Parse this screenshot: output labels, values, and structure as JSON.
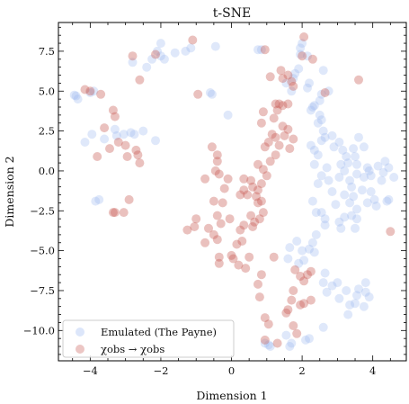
{
  "chart_data": {
    "type": "scatter",
    "title": "t-SNE",
    "xlabel": "Dimension 1",
    "ylabel": "Dimension 2",
    "xlim": [
      -4.9,
      4.95
    ],
    "ylim": [
      -11.9,
      9.3
    ],
    "xticks": [
      -4,
      -2,
      0,
      2,
      4
    ],
    "yticks": [
      -10.0,
      -7.5,
      -5.0,
      -2.5,
      0.0,
      2.5,
      5.0,
      7.5
    ],
    "ytick_labels": [
      "−10.0",
      "−7.5",
      "−5.0",
      "−2.5",
      "0.0",
      "2.5",
      "5.0",
      "7.5"
    ],
    "xtick_labels": [
      "−4",
      "−2",
      "0",
      "2",
      "4"
    ],
    "legend_position": "lower-left",
    "series": [
      {
        "name": "Emulated (The Payne)",
        "color": "#9bb8f0",
        "points": [
          [
            -4.4,
            4.7
          ],
          [
            -4.35,
            4.5
          ],
          [
            -4.45,
            4.75
          ],
          [
            -4.0,
            4.9
          ],
          [
            -3.9,
            5.0
          ],
          [
            -4.15,
            1.8
          ],
          [
            -3.95,
            2.3
          ],
          [
            -3.6,
            2.0
          ],
          [
            -3.3,
            2.6
          ],
          [
            -3.25,
            2.2
          ],
          [
            -3.05,
            2.3
          ],
          [
            -2.85,
            2.4
          ],
          [
            -2.75,
            2.3
          ],
          [
            -2.5,
            2.5
          ],
          [
            -2.15,
            1.9
          ],
          [
            -3.85,
            -1.9
          ],
          [
            -3.75,
            -1.8
          ],
          [
            -2.4,
            6.5
          ],
          [
            -2.25,
            7.0
          ],
          [
            -2.1,
            7.5
          ],
          [
            -2.0,
            8.0
          ],
          [
            -2.0,
            7.2
          ],
          [
            -1.9,
            7.0
          ],
          [
            -1.6,
            7.4
          ],
          [
            -1.3,
            7.5
          ],
          [
            -1.15,
            7.7
          ],
          [
            -2.8,
            6.8
          ],
          [
            -0.6,
            4.9
          ],
          [
            -0.55,
            4.8
          ],
          [
            -0.1,
            3.5
          ],
          [
            -0.45,
            7.8
          ],
          [
            0.75,
            7.6
          ],
          [
            0.85,
            7.6
          ],
          [
            1.75,
            5.8
          ],
          [
            1.55,
            5.5
          ],
          [
            1.7,
            5.0
          ],
          [
            1.8,
            6.1
          ],
          [
            1.9,
            6.4
          ],
          [
            1.95,
            7.3
          ],
          [
            2.0,
            8.0
          ],
          [
            1.95,
            7.7
          ],
          [
            2.15,
            7.2
          ],
          [
            2.6,
            6.3
          ],
          [
            2.2,
            5.5
          ],
          [
            2.15,
            5.2
          ],
          [
            2.3,
            4.0
          ],
          [
            2.25,
            3.8
          ],
          [
            2.35,
            4.1
          ],
          [
            2.5,
            3.5
          ],
          [
            2.55,
            3.2
          ],
          [
            2.45,
            3.0
          ],
          [
            2.6,
            2.5
          ],
          [
            2.65,
            2.1
          ],
          [
            2.55,
            1.9
          ],
          [
            2.25,
            1.6
          ],
          [
            2.35,
            1.3
          ],
          [
            2.45,
            1.0
          ],
          [
            2.75,
            5.0
          ],
          [
            2.55,
            4.8
          ],
          [
            2.5,
            4.4
          ],
          [
            2.85,
            2.2
          ],
          [
            2.9,
            1.5
          ],
          [
            3.05,
            1.8
          ],
          [
            3.15,
            1.3
          ],
          [
            3.25,
            0.9
          ],
          [
            3.1,
            0.4
          ],
          [
            3.3,
            0.5
          ],
          [
            3.2,
            0.0
          ],
          [
            3.05,
            -0.4
          ],
          [
            3.35,
            -0.6
          ],
          [
            3.45,
            1.4
          ],
          [
            3.5,
            0.9
          ],
          [
            3.55,
            0.4
          ],
          [
            3.6,
            2.1
          ],
          [
            3.75,
            1.5
          ],
          [
            3.55,
            -0.2
          ],
          [
            3.75,
            -0.4
          ],
          [
            3.85,
            0.2
          ],
          [
            3.9,
            0.0
          ],
          [
            3.95,
            -0.3
          ],
          [
            4.15,
            0.3
          ],
          [
            4.3,
            -0.1
          ],
          [
            4.35,
            0.6
          ],
          [
            4.45,
            0.2
          ],
          [
            4.25,
            -0.6
          ],
          [
            3.95,
            -1.3
          ],
          [
            3.85,
            -2.0
          ],
          [
            4.1,
            -2.2
          ],
          [
            4.05,
            -1.8
          ],
          [
            4.4,
            -1.9
          ],
          [
            4.45,
            -1.8
          ],
          [
            4.6,
            -0.4
          ],
          [
            3.7,
            -1.2
          ],
          [
            3.4,
            -1.0
          ],
          [
            3.2,
            -1.5
          ],
          [
            3.35,
            -2.0
          ],
          [
            3.45,
            -1.6
          ],
          [
            3.55,
            -2.4
          ],
          [
            3.2,
            -2.9
          ],
          [
            2.95,
            -2.1
          ],
          [
            2.85,
            -1.3
          ],
          [
            2.75,
            -0.6
          ],
          [
            2.7,
            0.2
          ],
          [
            2.55,
            -0.3
          ],
          [
            2.35,
            0.4
          ],
          [
            2.45,
            -0.8
          ],
          [
            2.3,
            -1.9
          ],
          [
            2.4,
            -2.6
          ],
          [
            2.55,
            -2.6
          ],
          [
            2.65,
            -3.0
          ],
          [
            2.65,
            -3.4
          ],
          [
            2.4,
            -4.0
          ],
          [
            2.3,
            -4.5
          ],
          [
            2.35,
            -5.1
          ],
          [
            2.2,
            -4.9
          ],
          [
            2.0,
            -5.0
          ],
          [
            1.85,
            -4.4
          ],
          [
            1.65,
            -4.8
          ],
          [
            1.6,
            -5.5
          ],
          [
            1.9,
            -5.8
          ],
          [
            2.05,
            -5.6
          ],
          [
            3.05,
            -3.2
          ],
          [
            3.1,
            -3.6
          ],
          [
            3.4,
            -2.8
          ],
          [
            3.55,
            -3.0
          ],
          [
            3.5,
            -3.6
          ],
          [
            2.65,
            -6.4
          ],
          [
            2.6,
            -7.0
          ],
          [
            2.7,
            -7.6
          ],
          [
            2.85,
            -7.2
          ],
          [
            3.0,
            -7.0
          ],
          [
            3.05,
            -8.0
          ],
          [
            3.25,
            -7.5
          ],
          [
            3.35,
            -8.4
          ],
          [
            3.55,
            -7.8
          ],
          [
            3.6,
            -7.4
          ],
          [
            3.8,
            -7.0
          ],
          [
            3.8,
            -7.6
          ],
          [
            3.9,
            -7.9
          ],
          [
            3.75,
            -8.5
          ],
          [
            3.5,
            -8.3
          ],
          [
            3.3,
            -9.0
          ],
          [
            2.6,
            -9.8
          ],
          [
            2.2,
            -10.5
          ],
          [
            2.1,
            -10.6
          ],
          [
            1.55,
            -10.3
          ],
          [
            1.7,
            -10.8
          ],
          [
            1.65,
            -11.0
          ],
          [
            1.05,
            -10.9
          ],
          [
            0.95,
            -10.8
          ],
          [
            1.1,
            -11.0
          ]
        ]
      },
      {
        "name": "χobs → χobs",
        "color": "#c95c55",
        "points": [
          [
            -4.15,
            5.1
          ],
          [
            -4.0,
            5.0
          ],
          [
            -3.7,
            4.8
          ],
          [
            -3.35,
            3.8
          ],
          [
            -3.3,
            3.4
          ],
          [
            -3.6,
            2.7
          ],
          [
            -3.8,
            0.9
          ],
          [
            -3.45,
            1.4
          ],
          [
            -3.2,
            1.8
          ],
          [
            -3.0,
            1.6
          ],
          [
            -2.95,
            0.9
          ],
          [
            -2.7,
            1.3
          ],
          [
            -2.65,
            1.0
          ],
          [
            -2.6,
            0.5
          ],
          [
            -2.9,
            -1.8
          ],
          [
            -3.35,
            -2.6
          ],
          [
            -3.3,
            -2.6
          ],
          [
            -3.05,
            -2.6
          ],
          [
            -2.8,
            7.2
          ],
          [
            -2.6,
            5.7
          ],
          [
            -2.15,
            7.3
          ],
          [
            -1.1,
            8.2
          ],
          [
            -0.95,
            4.8
          ],
          [
            -0.55,
            1.5
          ],
          [
            -0.4,
            1.0
          ],
          [
            -0.4,
            0.6
          ],
          [
            -0.45,
            0.0
          ],
          [
            -0.75,
            -0.5
          ],
          [
            -0.35,
            -0.2
          ],
          [
            -0.1,
            -0.5
          ],
          [
            -0.2,
            -1.1
          ],
          [
            -0.5,
            -1.9
          ],
          [
            -0.25,
            -2.0
          ],
          [
            -0.4,
            -2.8
          ],
          [
            -0.5,
            -4.0
          ],
          [
            -0.4,
            -4.3
          ],
          [
            -0.75,
            -4.5
          ],
          [
            -1.0,
            -3.0
          ],
          [
            -1.05,
            -3.5
          ],
          [
            -1.25,
            -3.7
          ],
          [
            -0.65,
            -3.6
          ],
          [
            -0.3,
            -3.3
          ],
          [
            -0.05,
            -3.0
          ],
          [
            -0.35,
            -5.4
          ],
          [
            -0.35,
            -5.8
          ],
          [
            0.0,
            -5.3
          ],
          [
            0.05,
            -5.5
          ],
          [
            0.15,
            -4.6
          ],
          [
            0.3,
            -4.4
          ],
          [
            0.2,
            -5.9
          ],
          [
            0.4,
            -6.1
          ],
          [
            0.5,
            -5.4
          ],
          [
            0.35,
            -1.2
          ],
          [
            0.45,
            -1.5
          ],
          [
            0.55,
            -0.6
          ],
          [
            0.6,
            -1.0
          ],
          [
            0.7,
            -1.6
          ],
          [
            0.75,
            -2.0
          ],
          [
            0.85,
            -1.9
          ],
          [
            0.9,
            -2.6
          ],
          [
            0.55,
            -2.8
          ],
          [
            0.35,
            -3.4
          ],
          [
            0.25,
            -3.7
          ],
          [
            0.6,
            -3.5
          ],
          [
            0.65,
            -3.2
          ],
          [
            0.8,
            -3.0
          ],
          [
            0.75,
            0.4
          ],
          [
            0.9,
            0.1
          ],
          [
            1.0,
            -0.3
          ],
          [
            1.1,
            0.6
          ],
          [
            1.25,
            1.0
          ],
          [
            0.95,
            1.5
          ],
          [
            1.05,
            1.8
          ],
          [
            1.15,
            2.3
          ],
          [
            1.25,
            2.1
          ],
          [
            1.35,
            1.6
          ],
          [
            0.85,
            3.0
          ],
          [
            1.2,
            3.3
          ],
          [
            1.35,
            4.2
          ],
          [
            1.45,
            4.1
          ],
          [
            1.6,
            4.2
          ],
          [
            0.9,
            3.7
          ],
          [
            1.1,
            5.9
          ],
          [
            1.4,
            6.3
          ],
          [
            1.6,
            6.0
          ],
          [
            1.75,
            5.3
          ],
          [
            2.0,
            7.2
          ],
          [
            2.05,
            8.4
          ],
          [
            2.3,
            7.0
          ],
          [
            2.65,
            4.9
          ],
          [
            1.25,
            4.2
          ],
          [
            1.3,
            3.8
          ],
          [
            1.45,
            2.8
          ],
          [
            1.6,
            2.6
          ],
          [
            1.5,
            2.2
          ],
          [
            1.75,
            2.0
          ],
          [
            1.65,
            1.4
          ],
          [
            0.85,
            -0.8
          ],
          [
            0.75,
            -1.2
          ],
          [
            0.95,
            7.6
          ],
          [
            1.45,
            5.8
          ],
          [
            1.7,
            5.6
          ],
          [
            3.6,
            5.7
          ],
          [
            1.2,
            -5.4
          ],
          [
            0.85,
            -6.5
          ],
          [
            0.75,
            -7.1
          ],
          [
            0.8,
            -7.9
          ],
          [
            0.95,
            -9.2
          ],
          [
            1.05,
            -9.6
          ],
          [
            0.95,
            -10.6
          ],
          [
            1.3,
            -10.8
          ],
          [
            1.55,
            -8.9
          ],
          [
            1.6,
            -8.7
          ],
          [
            1.7,
            -8.1
          ],
          [
            1.75,
            -7.5
          ],
          [
            1.8,
            -6.2
          ],
          [
            1.95,
            -6.6
          ],
          [
            2.05,
            -6.9
          ],
          [
            2.15,
            -6.5
          ],
          [
            2.25,
            -6.3
          ],
          [
            2.05,
            -8.3
          ],
          [
            1.95,
            -8.4
          ],
          [
            2.25,
            -8.1
          ],
          [
            1.75,
            -9.7
          ],
          [
            1.85,
            -10.2
          ],
          [
            4.5,
            -3.8
          ],
          [
            0.35,
            -0.5
          ],
          [
            0.25,
            -1.5
          ]
        ]
      }
    ]
  }
}
